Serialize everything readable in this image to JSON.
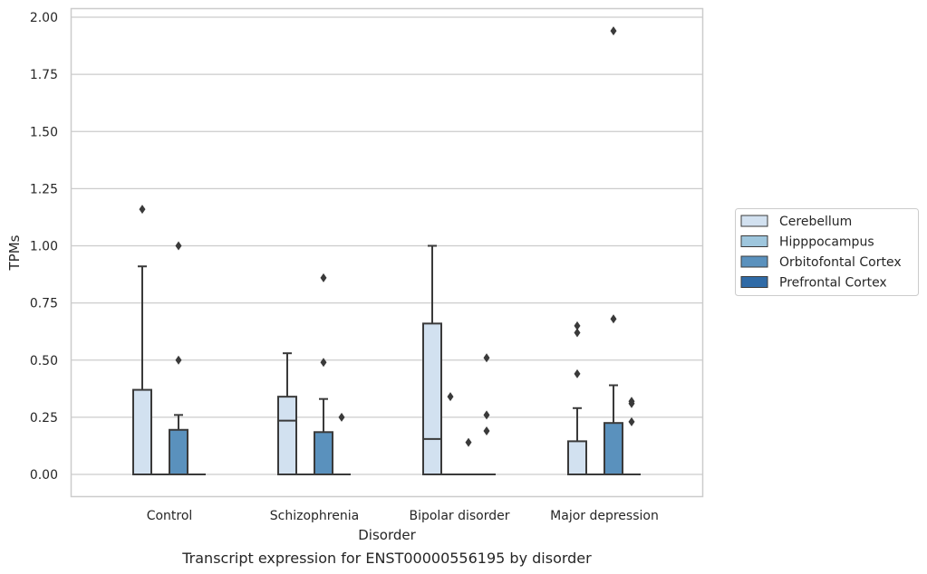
{
  "chart_data": {
    "type": "box",
    "title": "",
    "caption": "Transcript expression for ENST00000556195 by disorder",
    "xlabel": "Disorder",
    "ylabel": "TPMs",
    "ylim": [
      -0.09,
      2.04
    ],
    "yticks": [
      0.0,
      0.25,
      0.5,
      0.75,
      1.0,
      1.25,
      1.5,
      1.75,
      2.0
    ],
    "ytick_labels": [
      "0.00",
      "0.25",
      "0.50",
      "0.75",
      "1.00",
      "1.25",
      "1.50",
      "1.75",
      "2.00"
    ],
    "grid": "horizontal",
    "legend_position": "right",
    "categories": [
      "Control",
      "Schizophrenia",
      "Bipolar disorder",
      "Major depression"
    ],
    "series": [
      {
        "name": "Cerebellum",
        "color": "#d2e1f0",
        "boxes": [
          {
            "whislo": 0.0,
            "q1": 0.0,
            "med": 0.0,
            "q3": 0.37,
            "whishi": 0.91,
            "fliers": [
              1.16
            ]
          },
          {
            "whislo": 0.0,
            "q1": 0.0,
            "med": 0.235,
            "q3": 0.34,
            "whishi": 0.53,
            "fliers": []
          },
          {
            "whislo": 0.0,
            "q1": 0.0,
            "med": 0.155,
            "q3": 0.66,
            "whishi": 1.0,
            "fliers": []
          },
          {
            "whislo": 0.0,
            "q1": 0.0,
            "med": 0.0,
            "q3": 0.145,
            "whishi": 0.29,
            "fliers": [
              0.44,
              0.62,
              0.65
            ]
          }
        ]
      },
      {
        "name": "Hipppocampus",
        "color": "#9ec6dd",
        "boxes": [
          {
            "whislo": 0.0,
            "q1": 0.0,
            "med": 0.0,
            "q3": 0.0,
            "whishi": 0.0,
            "fliers": []
          },
          {
            "whislo": 0.0,
            "q1": 0.0,
            "med": 0.0,
            "q3": 0.0,
            "whishi": 0.0,
            "fliers": []
          },
          {
            "whislo": 0.0,
            "q1": 0.0,
            "med": 0.0,
            "q3": 0.0,
            "whishi": 0.0,
            "fliers": [
              0.34
            ]
          },
          {
            "whislo": 0.0,
            "q1": 0.0,
            "med": 0.0,
            "q3": 0.0,
            "whishi": 0.0,
            "fliers": []
          }
        ]
      },
      {
        "name": "Orbitofontal Cortex",
        "color": "#5a91bd",
        "boxes": [
          {
            "whislo": 0.0,
            "q1": 0.0,
            "med": 0.0,
            "q3": 0.195,
            "whishi": 0.26,
            "fliers": [
              0.5,
              1.0
            ]
          },
          {
            "whislo": 0.0,
            "q1": 0.0,
            "med": 0.0,
            "q3": 0.185,
            "whishi": 0.33,
            "fliers": [
              0.49,
              0.86
            ]
          },
          {
            "whislo": 0.0,
            "q1": 0.0,
            "med": 0.0,
            "q3": 0.0,
            "whishi": 0.0,
            "fliers": [
              0.14
            ]
          },
          {
            "whislo": 0.0,
            "q1": 0.0,
            "med": 0.0,
            "q3": 0.225,
            "whishi": 0.39,
            "fliers": [
              0.68,
              1.94
            ]
          }
        ]
      },
      {
        "name": "Prefrontal Cortex",
        "color": "#2f6aa6",
        "boxes": [
          {
            "whislo": 0.0,
            "q1": 0.0,
            "med": 0.0,
            "q3": 0.0,
            "whishi": 0.0,
            "fliers": []
          },
          {
            "whislo": 0.0,
            "q1": 0.0,
            "med": 0.0,
            "q3": 0.0,
            "whishi": 0.0,
            "fliers": [
              0.25
            ]
          },
          {
            "whislo": 0.0,
            "q1": 0.0,
            "med": 0.0,
            "q3": 0.0,
            "whishi": 0.0,
            "fliers": [
              0.19,
              0.26,
              0.51
            ]
          },
          {
            "whislo": 0.0,
            "q1": 0.0,
            "med": 0.0,
            "q3": 0.0,
            "whishi": 0.0,
            "fliers": [
              0.23,
              0.31,
              0.32
            ]
          }
        ]
      }
    ]
  }
}
